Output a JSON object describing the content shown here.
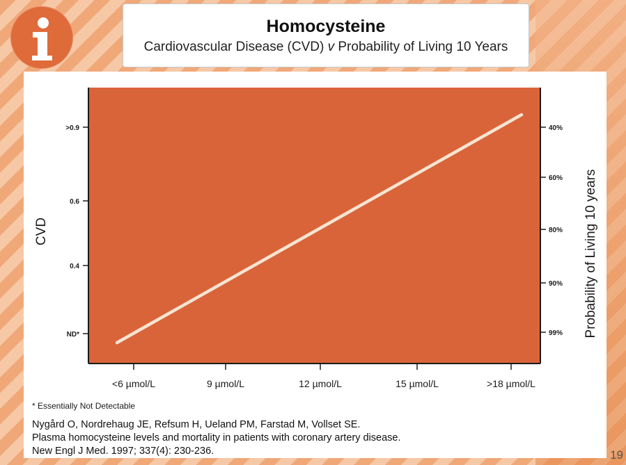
{
  "slide": {
    "title": "Homocysteine",
    "subtitle_before": "Cardiovascular Disease (CVD) ",
    "subtitle_v": "v",
    "subtitle_after": " Probability of Living 10 Years",
    "page_number": "19",
    "info_icon": "info-icon",
    "colors": {
      "accent": "#df6a3a",
      "plot_fill": "#da6439",
      "line": "#f6e4d2"
    }
  },
  "footnote": "* Essentially Not Detectable",
  "citation": [
    "Nygård O, Nordrehaug JE, Refsum H, Ueland PM, Farstad M, Vollset SE.",
    "Plasma homocysteine levels and mortality in patients with coronary artery disease.",
    "New Engl J Med. 1997; 337(4): 230-236."
  ],
  "chart_data": {
    "type": "line",
    "title": "",
    "xlabel": "",
    "ylabel": "CVD",
    "y2label": "Probability of Living 10 years",
    "x_categories": [
      "<6 µmol/L",
      "9 µmol/L",
      "12 µmol/L",
      "15 µmol/L",
      ">18 µmol/L"
    ],
    "y_ticks": [
      "ND*",
      "0.4",
      "0.6",
      ">0.9"
    ],
    "y2_ticks": [
      "40%",
      "60%",
      "80%",
      "90%",
      "99%"
    ],
    "series": [
      {
        "values": [
          {
            "x": "<6 µmol/L",
            "y": "ND*"
          },
          {
            "x": ">18 µmol/L",
            "y": ">0.9"
          }
        ]
      }
    ],
    "grid": false
  }
}
